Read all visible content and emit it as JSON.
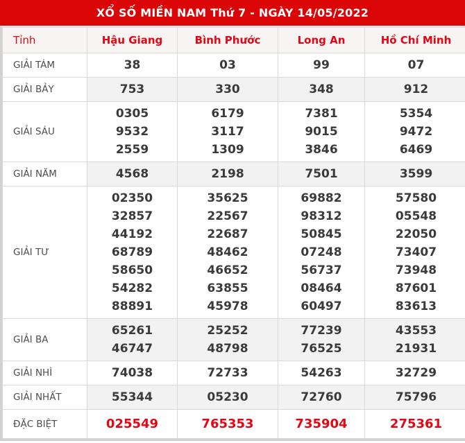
{
  "title": "XỔ SỐ MIỀN NAM Thứ 7 - NGÀY 14/05/2022",
  "colors": {
    "header_bg": "#da0506",
    "accent_red": "#e30613",
    "shaded_row": "#f2f2f2"
  },
  "table": {
    "corner_header": "Tỉnh",
    "provinces": [
      "Hậu Giang",
      "Bình Phước",
      "Long An",
      "Hồ Chí Minh"
    ],
    "prizes": [
      {
        "label": "GIẢI TÁM",
        "special": false,
        "values": [
          [
            "38"
          ],
          [
            "03"
          ],
          [
            "99"
          ],
          [
            "07"
          ]
        ]
      },
      {
        "label": "GIẢI BẢY",
        "special": false,
        "values": [
          [
            "753"
          ],
          [
            "330"
          ],
          [
            "348"
          ],
          [
            "912"
          ]
        ]
      },
      {
        "label": "GIẢI SÁU",
        "special": false,
        "values": [
          [
            "0305",
            "9532",
            "2559"
          ],
          [
            "6179",
            "3117",
            "1309"
          ],
          [
            "7381",
            "9015",
            "3846"
          ],
          [
            "5354",
            "9472",
            "6469"
          ]
        ]
      },
      {
        "label": "GIẢI NĂM",
        "special": false,
        "values": [
          [
            "4568"
          ],
          [
            "2198"
          ],
          [
            "7501"
          ],
          [
            "3599"
          ]
        ]
      },
      {
        "label": "GIẢI TƯ",
        "special": false,
        "values": [
          [
            "02350",
            "32857",
            "44192",
            "68789",
            "58650",
            "54282",
            "88891"
          ],
          [
            "35625",
            "22567",
            "22687",
            "48462",
            "46652",
            "63855",
            "45978"
          ],
          [
            "69882",
            "98312",
            "50845",
            "07248",
            "56737",
            "08464",
            "60497"
          ],
          [
            "57580",
            "05548",
            "22050",
            "73407",
            "73948",
            "87601",
            "83613"
          ]
        ]
      },
      {
        "label": "GIẢI BA",
        "special": false,
        "values": [
          [
            "65261",
            "46747"
          ],
          [
            "25252",
            "48798"
          ],
          [
            "77239",
            "76525"
          ],
          [
            "43553",
            "21931"
          ]
        ]
      },
      {
        "label": "GIẢI NHÌ",
        "special": false,
        "values": [
          [
            "74038"
          ],
          [
            "72733"
          ],
          [
            "54263"
          ],
          [
            "32729"
          ]
        ]
      },
      {
        "label": "GIẢI NHẤT",
        "special": false,
        "values": [
          [
            "55344"
          ],
          [
            "05230"
          ],
          [
            "72760"
          ],
          [
            "75796"
          ]
        ]
      },
      {
        "label": "ĐẶC BIỆT",
        "special": true,
        "values": [
          [
            "025549"
          ],
          [
            "765353"
          ],
          [
            "735904"
          ],
          [
            "275361"
          ]
        ]
      }
    ]
  }
}
